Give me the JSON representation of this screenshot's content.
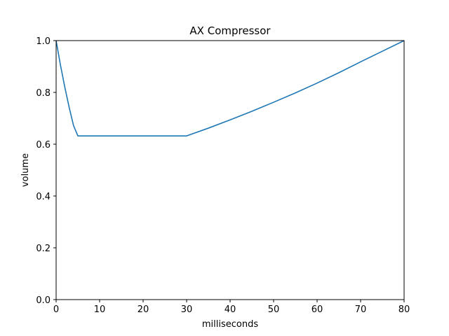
{
  "chart_data": {
    "type": "line",
    "title": "AX Compressor",
    "xlabel": "milliseconds",
    "ylabel": "volume",
    "xlim": [
      0,
      80
    ],
    "ylim": [
      0.0,
      1.0
    ],
    "grid": false,
    "x_ticks": [
      0,
      10,
      20,
      30,
      40,
      50,
      60,
      70,
      80
    ],
    "y_ticks": [
      0.0,
      0.2,
      0.4,
      0.6,
      0.8,
      1.0
    ],
    "x_tick_labels": [
      "0",
      "10",
      "20",
      "30",
      "40",
      "50",
      "60",
      "70",
      "80"
    ],
    "y_tick_labels": [
      "0.0",
      "0.2",
      "0.4",
      "0.6",
      "0.8",
      "1.0"
    ],
    "series": [
      {
        "color": "#1f77b4",
        "x": [
          0,
          1,
          2,
          3,
          4,
          5,
          10,
          20,
          30,
          35,
          40,
          45,
          50,
          55,
          60,
          65,
          70,
          75,
          80
        ],
        "y": [
          1.0,
          0.905,
          0.82,
          0.742,
          0.672,
          0.632,
          0.632,
          0.632,
          0.632,
          0.662,
          0.694,
          0.727,
          0.762,
          0.798,
          0.836,
          0.876,
          0.918,
          0.959,
          1.0
        ]
      }
    ]
  }
}
